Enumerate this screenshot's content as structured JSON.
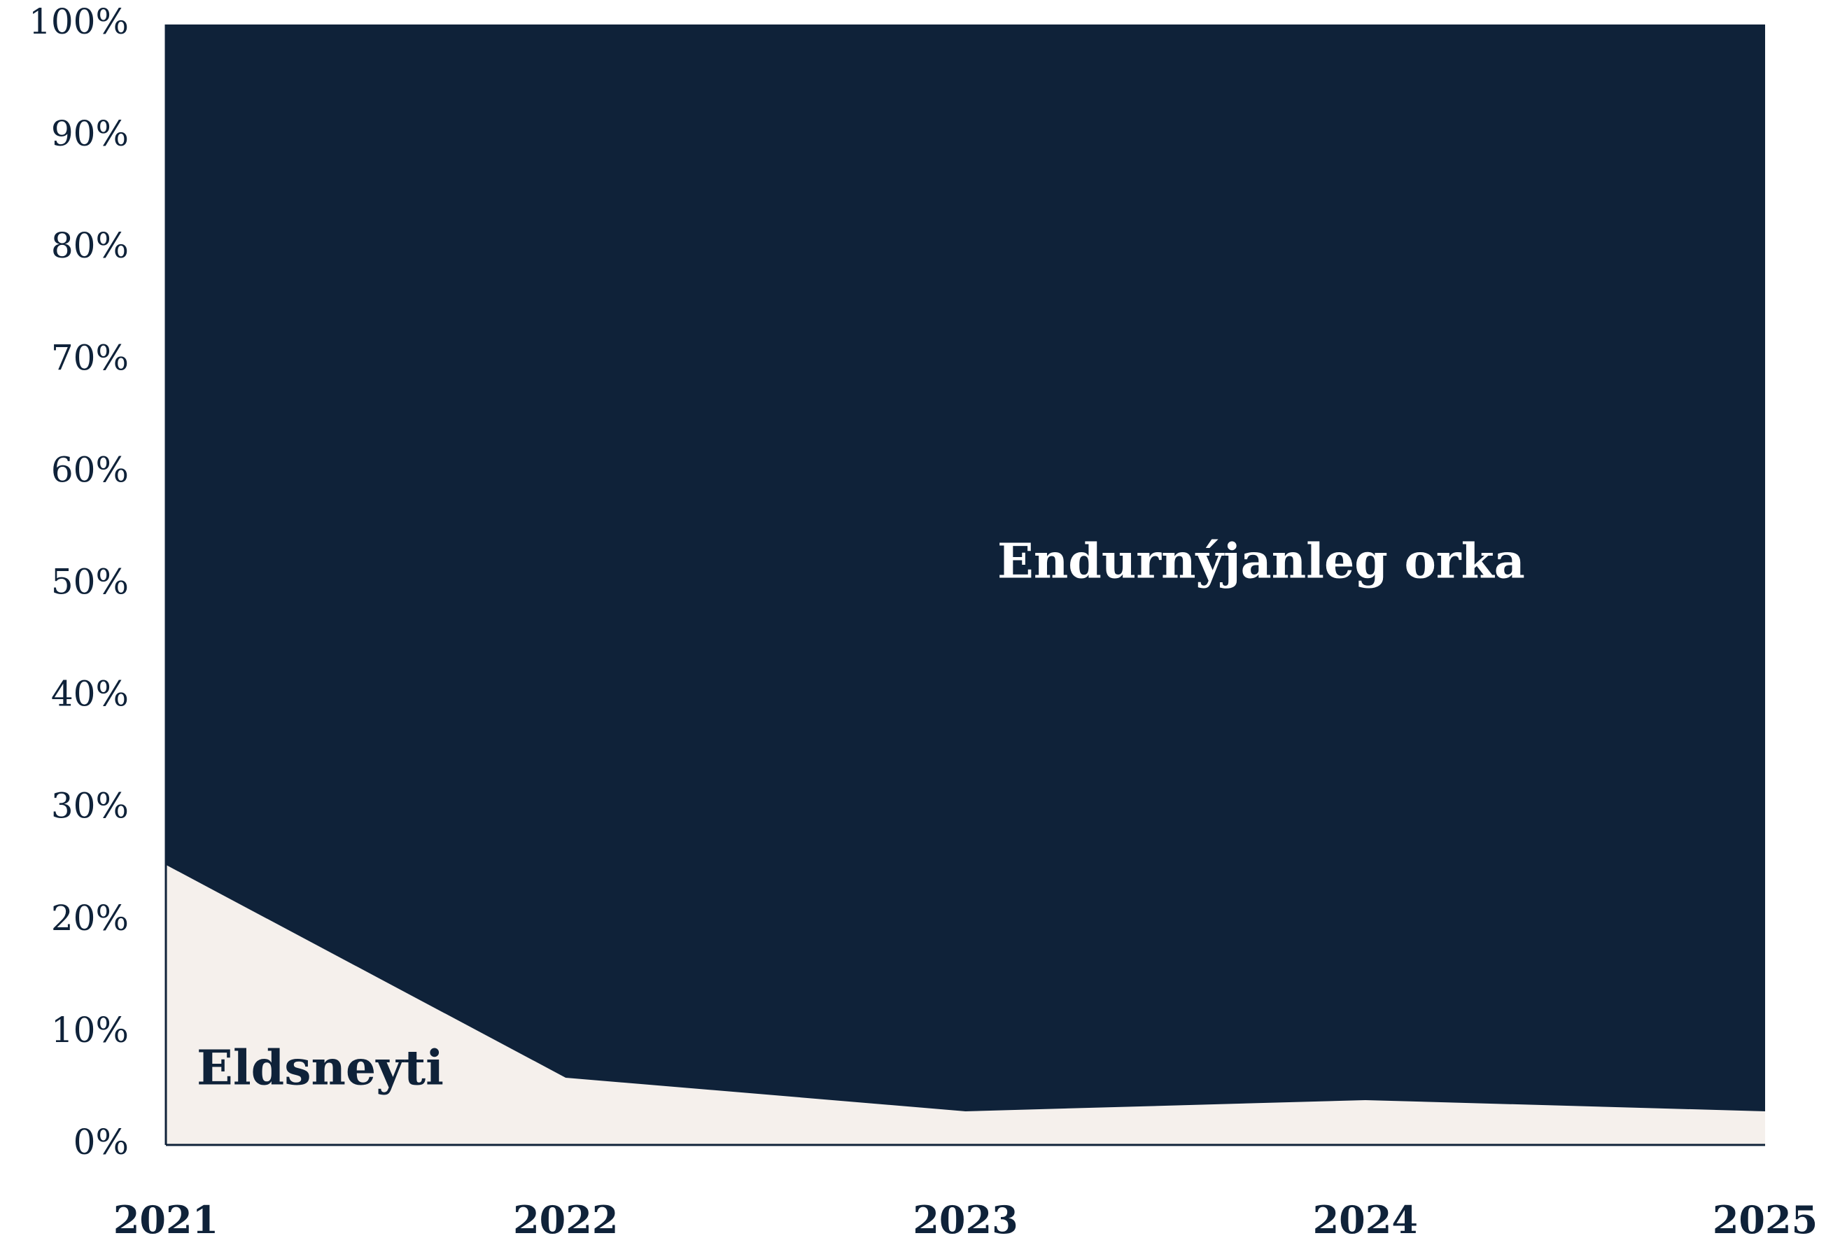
{
  "chart_data": {
    "type": "stacked_area",
    "categories": [
      "2021",
      "2022",
      "2023",
      "2024",
      "2025"
    ],
    "series": [
      {
        "name": "Eldsneyti",
        "color": "#f5f0ec",
        "values": [
          25,
          6,
          3,
          4,
          3
        ]
      },
      {
        "name": "Endurnýjanleg orka",
        "color": "#0f2239",
        "values": [
          75,
          94,
          97,
          96,
          97
        ]
      }
    ],
    "ylim": [
      0,
      100
    ],
    "yticks": [
      {
        "value": 0,
        "label": "0%"
      },
      {
        "value": 10,
        "label": "10%"
      },
      {
        "value": 20,
        "label": "20%"
      },
      {
        "value": 30,
        "label": "30%"
      },
      {
        "value": 40,
        "label": "40%"
      },
      {
        "value": 50,
        "label": "50%"
      },
      {
        "value": 60,
        "label": "60%"
      },
      {
        "value": 70,
        "label": "70%"
      },
      {
        "value": 80,
        "label": "80%"
      },
      {
        "value": 90,
        "label": "90%"
      },
      {
        "value": 100,
        "label": "100%"
      }
    ]
  }
}
